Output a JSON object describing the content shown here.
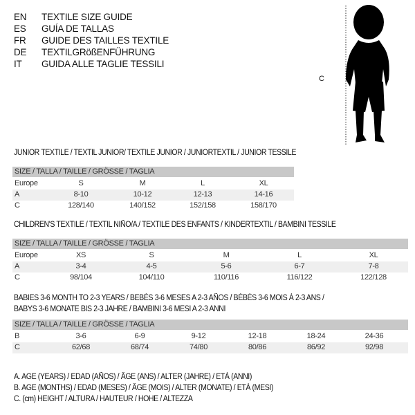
{
  "languages": [
    {
      "code": "EN",
      "text": "TEXTILE SIZE GUIDE"
    },
    {
      "code": "ES",
      "text": "GUÍA DE TALLAS"
    },
    {
      "code": "FR",
      "text": "GUIDE DES TAILLES TEXTILE"
    },
    {
      "code": "DE",
      "text": "TEXTILGRößENFÜHRUNG"
    },
    {
      "code": "IT",
      "text": "GUIDA ALLE TAGLIE TESSILI"
    }
  ],
  "figure": {
    "height_label": "C",
    "icon": "child-silhouette"
  },
  "sections": [
    {
      "title": "JUNIOR TEXTILE / TEXTIL JUNIOR/ TEXTILE JUNIOR / JUNIORTEXTIL / JUNIOR TESSILE",
      "header": "SIZE / TALLA / TAILLE / GRÖSSE / TAGLIA",
      "rows": [
        {
          "label": "Europe",
          "values": [
            "S",
            "M",
            "L",
            "XL"
          ]
        },
        {
          "label": "A",
          "values": [
            "8-10",
            "10-12",
            "12-13",
            "14-16"
          ]
        },
        {
          "label": "C",
          "values": [
            "128/140",
            "140/152",
            "152/158",
            "158/170"
          ]
        }
      ]
    },
    {
      "title": "CHILDREN'S TEXTILE / TEXTIL NIÑO/A / TEXTILE DES ENFANTS / KINDERTEXTIL / BAMBINI TESSILE",
      "header": "SIZE / TALLA / TAILLE / GRÖSSE / TAGLIA",
      "rows": [
        {
          "label": "Europe",
          "values": [
            "XS",
            "S",
            "M",
            "L",
            "XL"
          ]
        },
        {
          "label": "A",
          "values": [
            "3-4",
            "4-5",
            "5-6",
            "6-7",
            "7-8"
          ]
        },
        {
          "label": "C",
          "values": [
            "98/104",
            "104/110",
            "110/116",
            "116/122",
            "122/128"
          ]
        }
      ]
    },
    {
      "title": "BABIES 3-6 MONTH TO 2-3 YEARS / BEBÉS 3-6 MESES A 2-3 AÑOS / BÉBÉS 3-6 MOIS À 2-3 ANS /",
      "title2": "BABYS 3-6 MONATE BIS 2-3 JAHRE / BAMBINI 3-6 MESI A 2-3 ANNI",
      "header": "SIZE / TALLA / TAILLE / GRÖSSE / TAGLIA",
      "rows": [
        {
          "label": "B",
          "values": [
            "3-6",
            "6-9",
            "9-12",
            "12-18",
            "18-24",
            "24-36"
          ]
        },
        {
          "label": "C",
          "values": [
            "62/68",
            "68/74",
            "74/80",
            "80/86",
            "86/92",
            "92/98"
          ]
        }
      ]
    }
  ],
  "legend": [
    "A. AGE (YEARS) / EDAD (AÑOS) / ÂGE (ANS) / ALTER (JAHRE) / ETÀ (ANNI)",
    "B. AGE (MONTHS) / EDAD (MESES) / ÂGE (MOIS) / ALTER (MONATE) / ETÀ (MESI)",
    "C. (cm) HEIGHT / ALTURA / HAUTEUR / HÖHE / ALTEZZA"
  ],
  "colors": {
    "header_bg": "#c8c8c8",
    "alt_row_bg": "#efefef"
  }
}
